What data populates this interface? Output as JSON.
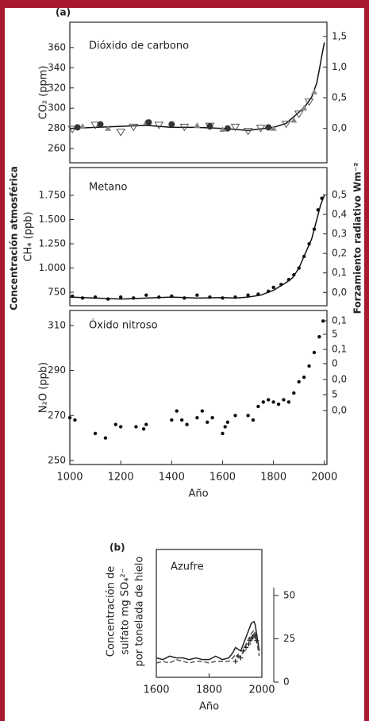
{
  "left_label": "Concentración atmosférica",
  "right_label": "Forzamiento radiativo Wm⁻²",
  "chart_data": [
    {
      "type": "line",
      "panel_label": "(a)",
      "annotation": "Dióxido de carbono",
      "ylabel": "CO₂ (ppm)",
      "xlim": [
        1000,
        2010
      ],
      "ylim": [
        246,
        385
      ],
      "yticks": [
        260,
        280,
        300,
        320,
        340,
        360
      ],
      "y2lim": [
        -0.56,
        1.73
      ],
      "y2ticks": [
        {
          "value": 0,
          "label": "0,0"
        },
        {
          "value": 0.5,
          "label": "0,5"
        },
        {
          "value": 1,
          "label": "1,0"
        },
        {
          "value": 1.5,
          "label": "1,5"
        }
      ],
      "series": [
        {
          "marker": "line",
          "color": "#111111",
          "x": [
            1000,
            1100,
            1200,
            1300,
            1400,
            1500,
            1600,
            1700,
            1800,
            1850,
            1900,
            1925,
            1950,
            1970,
            1980,
            1990,
            2000
          ],
          "values": [
            280,
            281,
            282,
            283,
            281,
            281,
            280,
            278,
            281,
            285,
            296,
            302,
            311,
            325,
            338,
            352,
            365
          ]
        },
        {
          "marker": "triangle-open",
          "color": "#555555",
          "x": [
            1010,
            1100,
            1200,
            1250,
            1350,
            1450,
            1550,
            1650,
            1700,
            1750,
            1850,
            1900,
            1940
          ],
          "values": [
            279,
            283,
            276,
            281,
            283,
            281,
            282,
            281,
            277,
            280,
            284,
            294,
            306
          ]
        },
        {
          "marker": "triangle",
          "color": "#888888",
          "x": [
            1050,
            1150,
            1300,
            1500,
            1600,
            1800,
            1880,
            1920,
            1960
          ],
          "values": [
            282,
            280,
            286,
            283,
            279,
            280,
            288,
            300,
            316
          ]
        },
        {
          "marker": "circle",
          "color": "#333333",
          "x": [
            1030,
            1120,
            1310,
            1400,
            1550,
            1620,
            1780
          ],
          "values": [
            281,
            284,
            286,
            284,
            282,
            280,
            281
          ]
        }
      ]
    },
    {
      "type": "line",
      "annotation": "Metano",
      "ylabel": "CH₄ (ppb)",
      "xlim": [
        1000,
        2010
      ],
      "ylim": [
        611,
        2037
      ],
      "yticks": [
        750,
        {
          "value": 1000,
          "label": "1.000"
        },
        {
          "value": 1250,
          "label": "1.250"
        },
        {
          "value": 1500,
          "label": "1.500"
        },
        {
          "value": 1750,
          "label": "1.750"
        }
      ],
      "y2lim": [
        -0.068,
        0.64
      ],
      "y2ticks": [
        {
          "value": 0,
          "label": "0,0"
        },
        {
          "value": 0.1,
          "label": "0,1"
        },
        {
          "value": 0.2,
          "label": "0,2"
        },
        {
          "value": 0.3,
          "label": "0,3"
        },
        {
          "value": 0.4,
          "label": "0,4"
        },
        {
          "value": 0.5,
          "label": "0,5"
        }
      ],
      "series": [
        {
          "marker": "line",
          "color": "#111111",
          "x": [
            1000,
            1100,
            1200,
            1300,
            1400,
            1500,
            1600,
            1650,
            1700,
            1750,
            1800,
            1850,
            1875,
            1900,
            1925,
            1950,
            1970,
            1985,
            2000
          ],
          "values": [
            700,
            690,
            680,
            690,
            700,
            690,
            695,
            690,
            700,
            720,
            770,
            850,
            900,
            1000,
            1150,
            1300,
            1500,
            1650,
            1750
          ]
        },
        {
          "marker": "dot",
          "color": "#111111",
          "x": [
            1010,
            1050,
            1100,
            1150,
            1200,
            1250,
            1300,
            1350,
            1400,
            1450,
            1500,
            1550,
            1600,
            1650,
            1700,
            1740,
            1780,
            1800,
            1830,
            1860,
            1880,
            1900,
            1920,
            1940,
            1960,
            1975,
            1990
          ],
          "values": [
            710,
            690,
            700,
            680,
            700,
            690,
            720,
            700,
            710,
            690,
            720,
            700,
            690,
            700,
            720,
            730,
            760,
            800,
            830,
            880,
            930,
            1000,
            1120,
            1250,
            1400,
            1600,
            1720
          ]
        }
      ]
    },
    {
      "type": "line",
      "annotation": "Óxido nitroso",
      "ylabel": "N₂O (ppb)",
      "xlabel": "Año",
      "xlim": [
        1000,
        2010
      ],
      "xticks": [
        1000,
        1200,
        1400,
        1600,
        1800,
        2000
      ],
      "ylim": [
        248.2,
        316.7
      ],
      "yticks": [
        250,
        270,
        290,
        310
      ],
      "y2_labels": [
        "0,1",
        "5",
        "0,1",
        "0",
        "0,0",
        "5",
        "0,0"
      ],
      "series": [
        {
          "marker": "dot",
          "color": "#111111",
          "x": [
            1000,
            1020,
            1100,
            1140,
            1180,
            1200,
            1260,
            1290,
            1300,
            1400,
            1420,
            1440,
            1460,
            1500,
            1520,
            1540,
            1560,
            1600,
            1610,
            1620,
            1650,
            1700,
            1720,
            1740,
            1760,
            1780,
            1800,
            1820,
            1840,
            1860,
            1880,
            1900,
            1920,
            1940,
            1960,
            1980,
            1995
          ],
          "values": [
            269,
            268,
            262,
            260,
            266,
            265,
            265,
            264,
            266,
            268,
            272,
            268,
            266,
            269,
            272,
            267,
            269,
            262,
            265,
            267,
            270,
            270,
            268,
            274,
            276,
            277,
            276,
            275,
            277,
            276,
            280,
            285,
            287,
            292,
            298,
            305,
            312
          ]
        }
      ]
    },
    {
      "type": "line",
      "panel_label": "(b)",
      "annotation": "Azufre",
      "ylabel": [
        "Concentración de",
        "sulfato mg SO₄²⁻",
        "por tonelada de hielo"
      ],
      "xlabel": "Año",
      "xlim": [
        1600,
        2000
      ],
      "xticks": [
        1600,
        1800,
        2000
      ],
      "ylim": [
        0,
        54.6
      ],
      "yticks": [
        0,
        25,
        50
      ],
      "series": [
        {
          "marker": "line",
          "color": "#222222",
          "x": [
            1600,
            1625,
            1650,
            1675,
            1700,
            1725,
            1750,
            1775,
            1800,
            1825,
            1850,
            1875,
            1890,
            1900,
            1910,
            1920,
            1930,
            1940,
            1950,
            1960,
            1970,
            1975,
            1980,
            1990
          ],
          "values": [
            14,
            13,
            15,
            14,
            14,
            13,
            14,
            13,
            13,
            15,
            13,
            14,
            17,
            20,
            19,
            18,
            22,
            26,
            30,
            34,
            35,
            33,
            28,
            18
          ]
        },
        {
          "marker": "dashed",
          "color": "#555555",
          "x": [
            1600,
            1625,
            1650,
            1675,
            1700,
            1725,
            1750,
            1775,
            1800,
            1825,
            1850,
            1875,
            1890,
            1900,
            1910,
            1920,
            1930,
            1940,
            1950,
            1960,
            1970,
            1975,
            1980,
            1990
          ],
          "values": [
            11,
            12,
            11,
            13,
            12,
            11,
            12,
            12,
            11,
            12,
            12,
            12,
            14,
            16,
            15,
            15,
            18,
            22,
            25,
            28,
            30,
            28,
            24,
            15
          ]
        },
        {
          "marker": "plus",
          "color": "#222222",
          "x": [
            1900,
            1910,
            1920,
            1930,
            1940,
            1950,
            1955,
            1960,
            1965,
            1970,
            1975,
            1980
          ],
          "values": [
            12,
            15,
            14,
            18,
            20,
            22,
            24,
            25,
            26,
            27,
            26,
            24
          ]
        }
      ]
    }
  ]
}
